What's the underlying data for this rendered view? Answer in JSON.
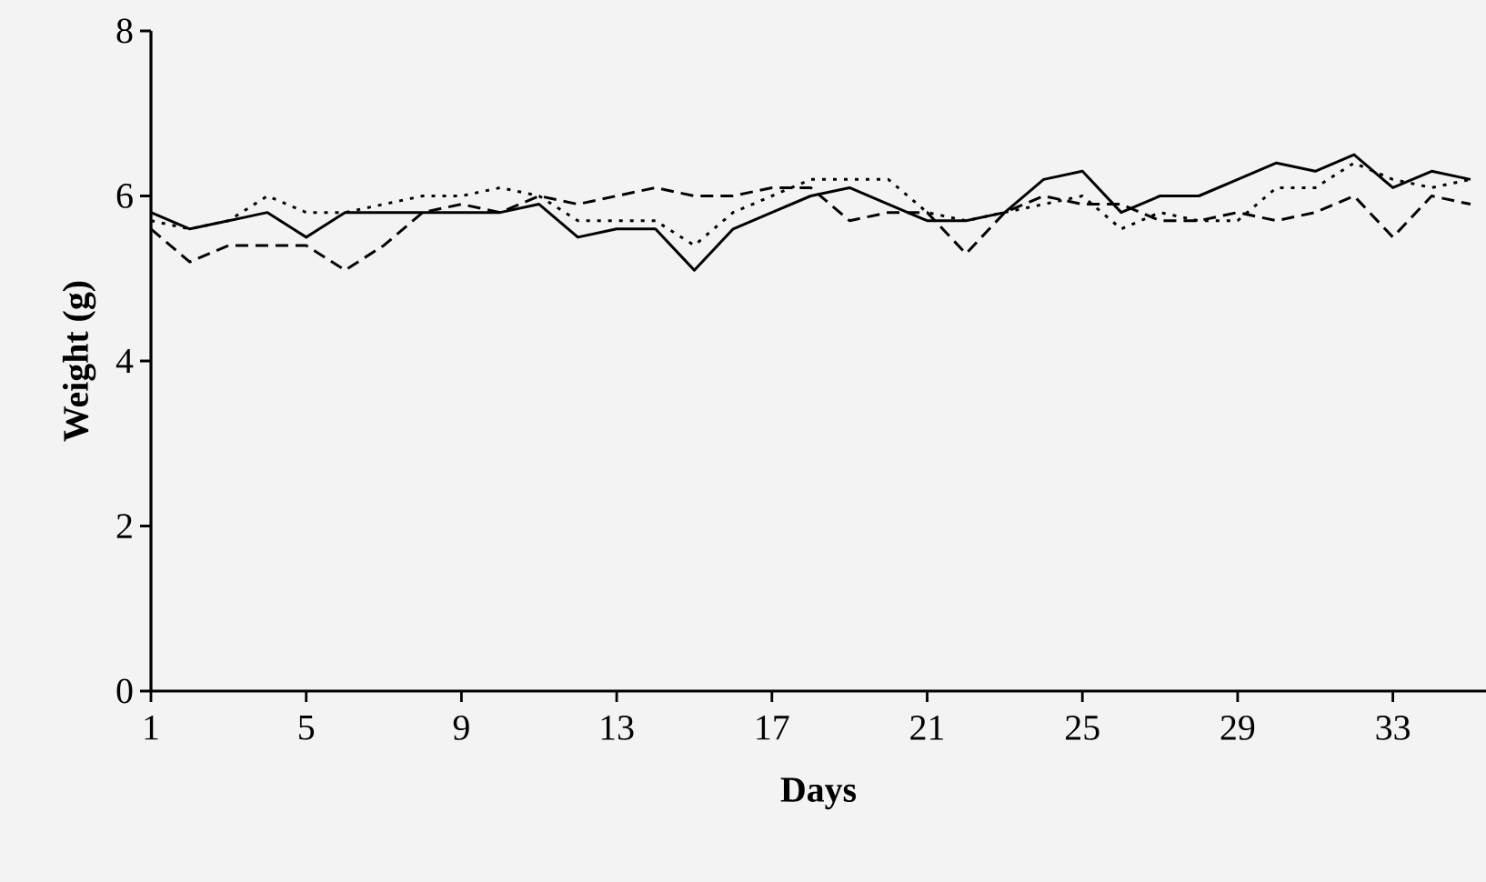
{
  "chart_data": {
    "type": "line",
    "xlabel": "Days",
    "ylabel": "Weight (g)",
    "x": [
      1,
      2,
      3,
      4,
      5,
      6,
      7,
      8,
      9,
      10,
      11,
      12,
      13,
      14,
      15,
      16,
      17,
      18,
      19,
      20,
      21,
      22,
      23,
      24,
      25,
      26,
      27,
      28,
      29,
      30,
      31,
      32,
      33,
      34,
      35
    ],
    "series": [
      {
        "color": "#000000",
        "line_style": "solid",
        "values": [
          5.8,
          5.6,
          5.7,
          5.8,
          5.5,
          5.8,
          5.8,
          5.8,
          5.8,
          5.8,
          5.9,
          5.5,
          5.6,
          5.6,
          5.1,
          5.6,
          5.8,
          6.0,
          6.1,
          5.9,
          5.7,
          5.7,
          5.8,
          6.2,
          6.3,
          5.8,
          6.0,
          6.0,
          6.2,
          6.4,
          6.3,
          6.5,
          6.1,
          6.3,
          6.2
        ]
      },
      {
        "color": "#000000",
        "line_style": "dashed",
        "values": [
          5.6,
          5.2,
          5.4,
          5.4,
          5.4,
          5.1,
          5.4,
          5.8,
          5.9,
          5.8,
          6.0,
          5.9,
          6.0,
          6.1,
          6.0,
          6.0,
          6.1,
          6.1,
          5.7,
          5.8,
          5.8,
          5.3,
          5.8,
          6.0,
          5.9,
          5.9,
          5.7,
          5.7,
          5.8,
          5.7,
          5.8,
          6.0,
          5.5,
          6.0,
          5.9
        ]
      },
      {
        "color": "#000000",
        "line_style": "dotted",
        "values": [
          5.7,
          5.6,
          5.7,
          6.0,
          5.8,
          5.8,
          5.9,
          6.0,
          6.0,
          6.1,
          6.0,
          5.7,
          5.7,
          5.7,
          5.4,
          5.8,
          6.0,
          6.2,
          6.2,
          6.2,
          5.8,
          5.7,
          5.8,
          5.9,
          6.0,
          5.6,
          5.8,
          5.7,
          5.7,
          6.1,
          6.1,
          6.4,
          6.2,
          6.1,
          6.2
        ]
      }
    ],
    "xlim": [
      1,
      35.4
    ],
    "xticks": [
      1,
      5,
      9,
      13,
      17,
      21,
      25,
      29,
      33
    ],
    "ylim": [
      0,
      8
    ],
    "yticks": [
      0,
      2,
      4,
      6,
      8
    ],
    "marker": "none"
  }
}
